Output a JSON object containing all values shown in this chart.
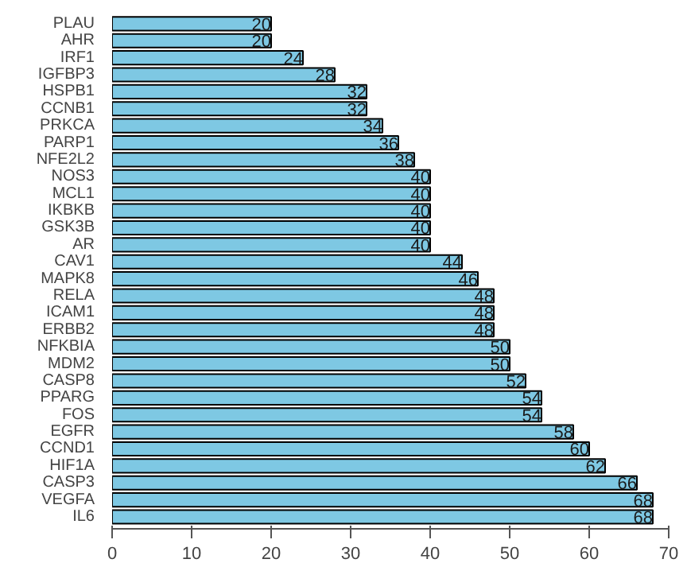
{
  "chart_data": {
    "type": "bar",
    "orientation": "horizontal",
    "categories": [
      "PLAU",
      "AHR",
      "IRF1",
      "IGFBP3",
      "HSPB1",
      "CCNB1",
      "PRKCA",
      "PARP1",
      "NFE2L2",
      "NOS3",
      "MCL1",
      "IKBKB",
      "GSK3B",
      "AR",
      "CAV1",
      "MAPK8",
      "RELA",
      "ICAM1",
      "ERBB2",
      "NFKBIA",
      "MDM2",
      "CASP8",
      "PPARG",
      "FOS",
      "EGFR",
      "CCND1",
      "HIF1A",
      "CASP3",
      "VEGFA",
      "IL6"
    ],
    "values": [
      20,
      20,
      24,
      28,
      32,
      32,
      34,
      36,
      38,
      40,
      40,
      40,
      40,
      40,
      44,
      46,
      48,
      48,
      48,
      50,
      50,
      52,
      54,
      54,
      58,
      60,
      62,
      66,
      68,
      68
    ],
    "color": "#7ec8e3",
    "xlim": [
      0,
      70
    ],
    "xticks": [
      0,
      10,
      20,
      30,
      40,
      50,
      60,
      70
    ],
    "data_labels": true,
    "grid": false
  }
}
